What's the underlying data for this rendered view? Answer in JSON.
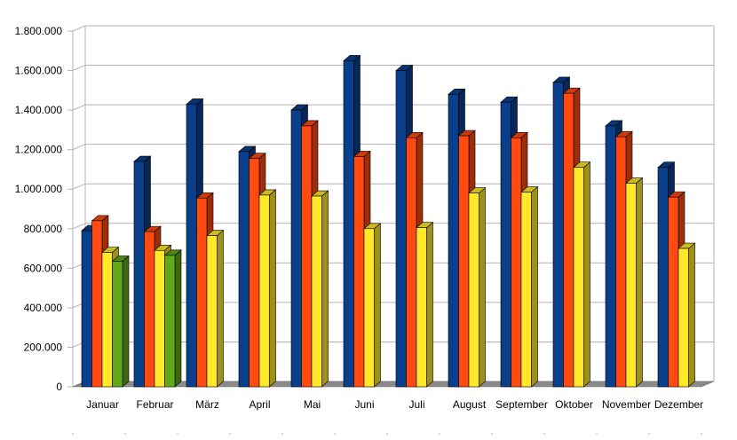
{
  "chart_data": {
    "type": "bar",
    "title": "",
    "xlabel": "",
    "ylabel": "",
    "ylim": [
      0,
      1800000
    ],
    "grid": true,
    "legend": "none",
    "categories": [
      "Januar",
      "Februar",
      "März",
      "April",
      "Mai",
      "Juni",
      "Juli",
      "August",
      "September",
      "Oktober",
      "November",
      "Dezember"
    ],
    "y_ticks": [
      {
        "value": 0,
        "label": "0"
      },
      {
        "value": 200000,
        "label": "200.000"
      },
      {
        "value": 400000,
        "label": "400.000"
      },
      {
        "value": 600000,
        "label": "600.000"
      },
      {
        "value": 800000,
        "label": "800.000"
      },
      {
        "value": 1000000,
        "label": "1.000.000"
      },
      {
        "value": 1200000,
        "label": "1.200.000"
      },
      {
        "value": 1400000,
        "label": "1.400.000"
      },
      {
        "value": 1600000,
        "label": "1.600.000"
      },
      {
        "value": 1800000,
        "label": "1.800.000"
      }
    ],
    "series": [
      {
        "color": "#0a3f8c",
        "values": [
          790000,
          1140000,
          1430000,
          1190000,
          1400000,
          1650000,
          1600000,
          1480000,
          1440000,
          1540000,
          1320000,
          1110000
        ]
      },
      {
        "color": "#ff4a12",
        "values": [
          840000,
          785000,
          955000,
          1155000,
          1320000,
          1165000,
          1260000,
          1270000,
          1260000,
          1485000,
          1265000,
          960000
        ]
      },
      {
        "color": "#ffe82a",
        "values": [
          680000,
          690000,
          765000,
          970000,
          965000,
          800000,
          805000,
          980000,
          985000,
          1110000,
          1030000,
          700000
        ]
      },
      {
        "color": "#62a81a",
        "values": [
          635000,
          665000,
          null,
          null,
          null,
          null,
          null,
          null,
          null,
          null,
          null,
          null
        ]
      }
    ]
  }
}
